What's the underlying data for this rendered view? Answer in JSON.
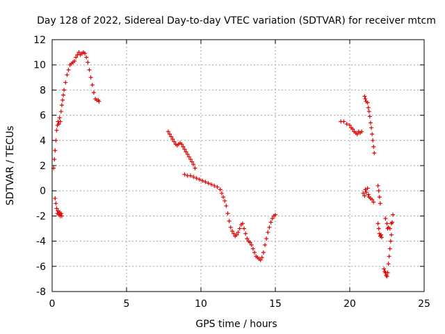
{
  "chart_data": {
    "type": "scatter",
    "title": "Day 128 of 2022, Sidereal Day-to-day VTEC variation (SDTVAR) for receiver mtcm",
    "xlabel": "GPS time / hours",
    "ylabel": "SDTVAR / TECUs",
    "xlim": [
      0,
      25
    ],
    "ylim": [
      -8,
      12
    ],
    "xticks": [
      "0",
      "5",
      "10",
      "15",
      "20",
      "25"
    ],
    "yticks": [
      "-8",
      "-6",
      "-4",
      "-2",
      "0",
      "2",
      "4",
      "6",
      "8",
      "10",
      "12"
    ],
    "grid": true,
    "marker": "plus",
    "color": "#e00000",
    "series": [
      {
        "name": "SDTVAR",
        "points": [
          [
            0.1,
            1.8
          ],
          [
            0.15,
            2.5
          ],
          [
            0.2,
            3.2
          ],
          [
            0.25,
            4.0
          ],
          [
            0.3,
            4.8
          ],
          [
            0.35,
            5.2
          ],
          [
            0.4,
            5.5
          ],
          [
            0.45,
            5.3
          ],
          [
            0.5,
            5.8
          ],
          [
            0.55,
            5.5
          ],
          [
            0.6,
            6.3
          ],
          [
            0.65,
            6.8
          ],
          [
            0.7,
            7.2
          ],
          [
            0.75,
            7.6
          ],
          [
            0.8,
            8.0
          ],
          [
            0.9,
            8.6
          ],
          [
            1.0,
            9.2
          ],
          [
            1.1,
            9.6
          ],
          [
            1.2,
            10.0
          ],
          [
            1.3,
            10.1
          ],
          [
            1.4,
            10.2
          ],
          [
            1.5,
            10.3
          ],
          [
            1.6,
            10.6
          ],
          [
            1.7,
            10.8
          ],
          [
            1.8,
            11.0
          ],
          [
            1.9,
            10.8
          ],
          [
            2.0,
            10.9
          ],
          [
            2.1,
            11.0
          ],
          [
            2.2,
            10.9
          ],
          [
            2.3,
            10.6
          ],
          [
            2.4,
            10.2
          ],
          [
            2.5,
            9.6
          ],
          [
            2.6,
            9.0
          ],
          [
            2.7,
            8.4
          ],
          [
            2.8,
            7.8
          ],
          [
            2.9,
            7.3
          ],
          [
            3.0,
            7.2
          ],
          [
            3.1,
            7.2
          ],
          [
            3.15,
            7.1
          ],
          [
            0.2,
            -0.6
          ],
          [
            0.25,
            -1.0
          ],
          [
            0.3,
            -1.4
          ],
          [
            0.35,
            -1.8
          ],
          [
            0.4,
            -1.6
          ],
          [
            0.45,
            -1.9
          ],
          [
            0.5,
            -1.7
          ],
          [
            0.55,
            -2.0
          ],
          [
            0.6,
            -1.8
          ],
          [
            0.65,
            -2.0
          ],
          [
            7.8,
            4.7
          ],
          [
            7.9,
            4.5
          ],
          [
            8.0,
            4.3
          ],
          [
            8.1,
            4.1
          ],
          [
            8.2,
            3.9
          ],
          [
            8.3,
            3.7
          ],
          [
            8.4,
            3.6
          ],
          [
            8.5,
            3.7
          ],
          [
            8.6,
            3.8
          ],
          [
            8.7,
            3.7
          ],
          [
            8.8,
            3.5
          ],
          [
            8.9,
            3.3
          ],
          [
            9.0,
            3.1
          ],
          [
            9.1,
            2.9
          ],
          [
            9.2,
            2.7
          ],
          [
            9.3,
            2.5
          ],
          [
            9.4,
            2.3
          ],
          [
            9.5,
            2.1
          ],
          [
            9.6,
            1.8
          ],
          [
            8.9,
            1.3
          ],
          [
            9.1,
            1.2
          ],
          [
            9.3,
            1.2
          ],
          [
            9.5,
            1.1
          ],
          [
            9.7,
            1.0
          ],
          [
            9.9,
            0.9
          ],
          [
            10.1,
            0.8
          ],
          [
            10.3,
            0.7
          ],
          [
            10.5,
            0.6
          ],
          [
            10.7,
            0.5
          ],
          [
            10.9,
            0.4
          ],
          [
            11.1,
            0.3
          ],
          [
            11.3,
            0.1
          ],
          [
            11.4,
            -0.2
          ],
          [
            11.5,
            -0.5
          ],
          [
            11.6,
            -0.8
          ],
          [
            11.7,
            -1.2
          ],
          [
            11.8,
            -1.8
          ],
          [
            11.9,
            -2.4
          ],
          [
            12.0,
            -2.9
          ],
          [
            12.1,
            -3.2
          ],
          [
            12.2,
            -3.4
          ],
          [
            12.3,
            -3.6
          ],
          [
            12.4,
            -3.5
          ],
          [
            12.5,
            -3.3
          ],
          [
            12.6,
            -3.0
          ],
          [
            12.7,
            -2.7
          ],
          [
            12.8,
            -2.6
          ],
          [
            12.9,
            -3.0
          ],
          [
            13.0,
            -3.4
          ],
          [
            13.1,
            -3.8
          ],
          [
            13.2,
            -4.0
          ],
          [
            13.3,
            -4.1
          ],
          [
            13.4,
            -4.3
          ],
          [
            13.5,
            -4.6
          ],
          [
            13.6,
            -4.9
          ],
          [
            13.7,
            -5.2
          ],
          [
            13.8,
            -5.3
          ],
          [
            13.9,
            -5.4
          ],
          [
            14.0,
            -5.5
          ],
          [
            14.1,
            -5.3
          ],
          [
            14.2,
            -4.9
          ],
          [
            14.3,
            -4.3
          ],
          [
            14.4,
            -3.8
          ],
          [
            14.5,
            -3.3
          ],
          [
            14.6,
            -2.9
          ],
          [
            14.7,
            -2.5
          ],
          [
            14.8,
            -2.2
          ],
          [
            14.9,
            -2.0
          ],
          [
            15.0,
            -1.9
          ],
          [
            19.4,
            5.5
          ],
          [
            19.6,
            5.5
          ],
          [
            19.8,
            5.3
          ],
          [
            20.0,
            5.2
          ],
          [
            20.1,
            5.0
          ],
          [
            20.2,
            4.9
          ],
          [
            20.3,
            4.7
          ],
          [
            20.4,
            4.6
          ],
          [
            20.5,
            4.5
          ],
          [
            20.6,
            4.7
          ],
          [
            20.7,
            4.6
          ],
          [
            20.8,
            4.7
          ],
          [
            21.0,
            7.5
          ],
          [
            21.05,
            7.3
          ],
          [
            21.1,
            7.1
          ],
          [
            21.2,
            7.0
          ],
          [
            21.25,
            6.6
          ],
          [
            21.3,
            6.3
          ],
          [
            21.35,
            5.9
          ],
          [
            21.4,
            5.4
          ],
          [
            21.45,
            5.0
          ],
          [
            21.5,
            4.5
          ],
          [
            21.55,
            4.0
          ],
          [
            21.6,
            3.5
          ],
          [
            21.65,
            3.0
          ],
          [
            20.9,
            -0.2
          ],
          [
            21.0,
            -0.4
          ],
          [
            21.05,
            0.1
          ],
          [
            21.1,
            -0.1
          ],
          [
            21.2,
            0.2
          ],
          [
            21.25,
            -0.3
          ],
          [
            21.3,
            -0.5
          ],
          [
            21.4,
            -0.6
          ],
          [
            21.5,
            -0.7
          ],
          [
            21.6,
            -0.9
          ],
          [
            21.9,
            0.4
          ],
          [
            21.95,
            0.0
          ],
          [
            22.0,
            -0.5
          ],
          [
            22.05,
            -1.0
          ],
          [
            21.9,
            -2.6
          ],
          [
            21.95,
            -3.0
          ],
          [
            22.0,
            -3.4
          ],
          [
            22.05,
            -3.6
          ],
          [
            22.1,
            -3.5
          ],
          [
            22.15,
            -3.7
          ],
          [
            22.4,
            -2.2
          ],
          [
            22.5,
            -2.6
          ],
          [
            22.55,
            -3.0
          ],
          [
            22.6,
            -2.9
          ],
          [
            22.7,
            -3.0
          ],
          [
            22.8,
            -2.6
          ],
          [
            22.85,
            -2.5
          ],
          [
            22.9,
            -1.9
          ],
          [
            22.3,
            -6.2
          ],
          [
            22.35,
            -6.4
          ],
          [
            22.4,
            -6.5
          ],
          [
            22.45,
            -6.7
          ],
          [
            22.5,
            -6.8
          ],
          [
            22.55,
            -6.5
          ],
          [
            22.6,
            -5.8
          ],
          [
            22.65,
            -5.2
          ],
          [
            22.7,
            -4.6
          ],
          [
            22.75,
            -4.0
          ],
          [
            22.8,
            -3.5
          ]
        ]
      }
    ]
  }
}
